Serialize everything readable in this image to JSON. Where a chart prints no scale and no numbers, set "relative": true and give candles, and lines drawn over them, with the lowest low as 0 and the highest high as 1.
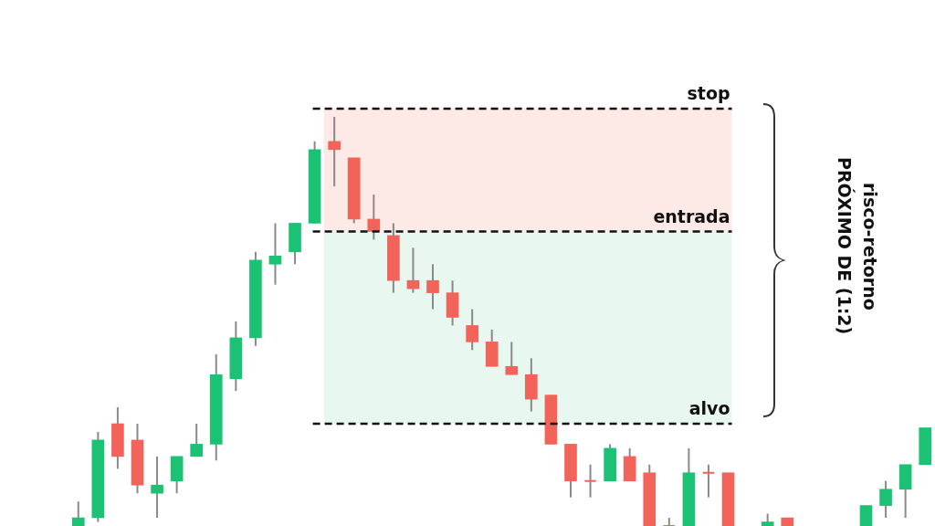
{
  "chart_data": {
    "type": "candlestick",
    "relative": true,
    "categories": [
      null,
      null,
      null,
      null,
      null,
      null,
      null,
      null,
      null,
      null,
      null,
      null,
      null,
      null,
      null,
      null,
      null,
      null,
      null,
      null,
      null,
      null,
      null,
      null,
      null,
      null,
      null,
      null,
      null,
      null,
      null,
      null,
      null,
      null,
      null,
      null,
      null,
      null,
      null,
      null,
      null,
      null,
      null,
      null
    ],
    "ohlc": [
      [
        0,
        0.06,
        0,
        0.02
      ],
      [
        0.02,
        0.23,
        0.01,
        0.21
      ],
      [
        0.25,
        0.29,
        0.14,
        0.17
      ],
      [
        0.21,
        0.25,
        0.08,
        0.1
      ],
      [
        0.08,
        0.17,
        0.02,
        0.1
      ],
      [
        0.11,
        0.17,
        0.08,
        0.17
      ],
      [
        0.17,
        0.25,
        0.17,
        0.2
      ],
      [
        0.2,
        0.42,
        0.16,
        0.37
      ],
      [
        0.36,
        0.5,
        0.33,
        0.46
      ],
      [
        0.46,
        0.67,
        0.44,
        0.65
      ],
      [
        0.64,
        0.74,
        0.59,
        0.66
      ],
      [
        0.67,
        0.74,
        0.64,
        0.74
      ],
      [
        0.74,
        0.94,
        0.74,
        0.92
      ],
      [
        0.94,
        1,
        0.83,
        0.92
      ],
      [
        0.9,
        0.9,
        0.74,
        0.75
      ],
      [
        0.75,
        0.81,
        0.7,
        0.72
      ],
      [
        0.71,
        0.74,
        0.57,
        0.6
      ],
      [
        0.6,
        0.68,
        0.57,
        0.58
      ],
      [
        0.6,
        0.64,
        0.53,
        0.57
      ],
      [
        0.57,
        0.6,
        0.49,
        0.51
      ],
      [
        0.49,
        0.53,
        0.43,
        0.45
      ],
      [
        0.45,
        0.48,
        0.39,
        0.39
      ],
      [
        0.39,
        0.45,
        0.37,
        0.37
      ],
      [
        0.37,
        0.41,
        0.28,
        0.31
      ],
      [
        0.32,
        0.32,
        0.2,
        0.2
      ],
      [
        0.2,
        0.2,
        0.07,
        0.11
      ],
      [
        0.11,
        0.15,
        0.07,
        0.11
      ],
      [
        0.11,
        0.2,
        0.11,
        0.19
      ],
      [
        0.17,
        0.19,
        0.11,
        0.11
      ],
      [
        0.13,
        0.15,
        0,
        0
      ],
      [
        0,
        0.02,
        0,
        0
      ],
      [
        0,
        0.19,
        0,
        0.13
      ],
      [
        0.13,
        0.15,
        0.07,
        0.13
      ],
      [
        0.13,
        0.13,
        0,
        0
      ],
      null,
      [
        0,
        0.03,
        0,
        0.01
      ],
      [
        0.02,
        0.02,
        0,
        0
      ],
      null,
      null,
      null,
      [
        0,
        0.05,
        0,
        0.05
      ],
      [
        0.05,
        0.11,
        0.02,
        0.09
      ],
      [
        0.09,
        0.15,
        0.02,
        0.15
      ],
      [
        0.15,
        0.24,
        0.15,
        0.24
      ]
    ],
    "colors": [
      "#1cc274",
      "#1cc274",
      "#f2645a",
      "#f2645a",
      "#1cc274",
      "#1cc274",
      "#1cc274",
      "#1cc274",
      "#1cc274",
      "#1cc274",
      "#1cc274",
      "#1cc274",
      "#1cc274",
      "#f2645a",
      "#f2645a",
      "#f2645a",
      "#f2645a",
      "#f2645a",
      "#f2645a",
      "#f2645a",
      "#f2645a",
      "#f2645a",
      "#f2645a",
      "#f2645a",
      "#f2645a",
      "#f2645a",
      "#f2645a",
      "#1cc274",
      "#f2645a",
      "#f2645a",
      "#f2645a",
      "#1cc274",
      "#f2645a",
      "#f2645a",
      null,
      "#1cc274",
      "#f2645a",
      null,
      null,
      null,
      "#1cc274",
      "#1cc274",
      "#1cc274",
      "#1cc274"
    ],
    "ref_lines": [
      {
        "axis": "y",
        "value": 1.02,
        "label": "stop",
        "line_style": "dashed",
        "color": "#111111"
      },
      {
        "axis": "y",
        "value": 0.72,
        "label": "entrada",
        "line_style": "dashed",
        "color": "#111111"
      },
      {
        "axis": "y",
        "value": 0.25,
        "label": "alvo",
        "line_style": "dashed",
        "color": "#111111"
      }
    ],
    "bands": [
      {
        "axis": "y",
        "from": 0.72,
        "to": 1.02,
        "color": "#fde9e5"
      },
      {
        "axis": "y",
        "from": 0.25,
        "to": 0.72,
        "color": "#e8f7ef"
      }
    ],
    "annotations": [
      "risco-retorno",
      "PRÓXIMO DE (1:2)"
    ],
    "legend": false
  }
}
